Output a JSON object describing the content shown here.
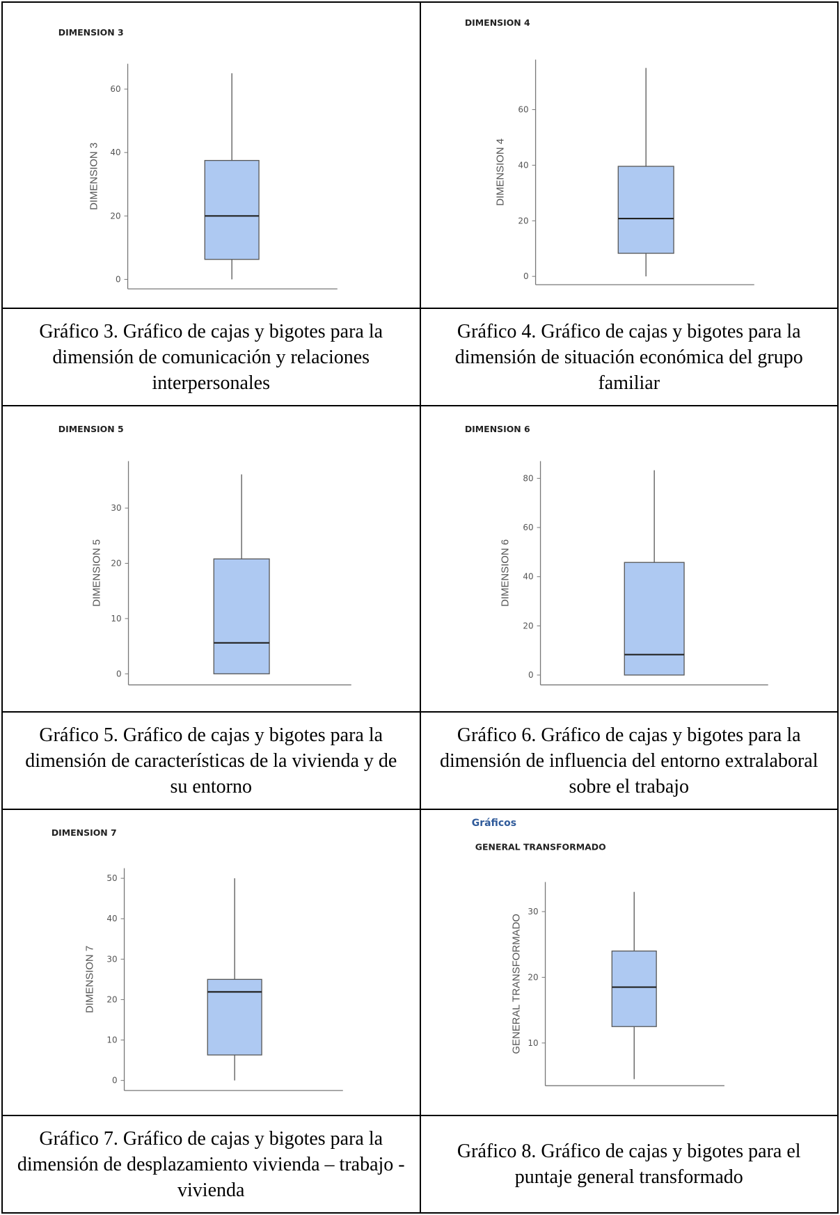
{
  "chart_data": [
    {
      "type": "boxplot",
      "title": "DIMENSION 3",
      "ylabel": "DIMENSION 3",
      "yticks": [
        0,
        20,
        40,
        60
      ],
      "ylim": [
        -3,
        68
      ],
      "box": {
        "min": 0,
        "q1": 6.3,
        "median": 20,
        "q3": 37.5,
        "max": 65
      },
      "caption": "Gráfico 3. Gráfico de cajas y bigotes para la dimensión de comunicación y relaciones interpersonales"
    },
    {
      "type": "boxplot",
      "title": "DIMENSION 4",
      "ylabel": "DIMENSION 4",
      "yticks": [
        0,
        20,
        40,
        60
      ],
      "ylim": [
        -3,
        78
      ],
      "box": {
        "min": 0,
        "q1": 8.3,
        "median": 20.8,
        "q3": 39.6,
        "max": 75
      },
      "caption": "Gráfico 4. Gráfico de cajas y bigotes para la dimensión de situación económica del grupo familiar"
    },
    {
      "type": "boxplot",
      "title": "DIMENSION 5",
      "ylabel": "DIMENSION 5",
      "yticks": [
        0,
        10,
        20,
        30
      ],
      "ylim": [
        -2,
        38.5
      ],
      "box": {
        "min": 0,
        "q1": 0,
        "median": 5.6,
        "q3": 20.8,
        "max": 36.1
      },
      "caption": "Gráfico 5. Gráfico de cajas y bigotes para la dimensión de características de la vivienda y de su entorno"
    },
    {
      "type": "boxplot",
      "title": "DIMENSION 6",
      "ylabel": "DIMENSION 6",
      "yticks": [
        0,
        20,
        40,
        60,
        80
      ],
      "ylim": [
        -4,
        87
      ],
      "box": {
        "min": 0,
        "q1": 0,
        "median": 8.3,
        "q3": 45.8,
        "max": 83.3
      },
      "caption": "Gráfico 6. Gráfico de cajas y bigotes para la dimensión de influencia del entorno extralaboral sobre el trabajo"
    },
    {
      "type": "boxplot",
      "title": "DIMENSION 7",
      "ylabel": "DIMENSION 7",
      "yticks": [
        0,
        10,
        20,
        30,
        40,
        50
      ],
      "ylim": [
        -2.5,
        52.5
      ],
      "box": {
        "min": 0,
        "q1": 6.3,
        "median": 21.9,
        "q3": 25,
        "max": 50
      },
      "caption": "Gráfico 7. Gráfico de cajas y bigotes para la dimensión de desplazamiento vivienda – trabajo - vivienda"
    },
    {
      "type": "boxplot",
      "section": "Gráficos",
      "title": "GENERAL TRANSFORMADO",
      "ylabel": "GENERAL TRANSFORMADO",
      "yticks": [
        10,
        20,
        30
      ],
      "ylim": [
        3.5,
        34.5
      ],
      "box": {
        "min": 4.5,
        "q1": 12.5,
        "median": 18.5,
        "q3": 24,
        "max": 33
      },
      "caption": "Gráfico 8. Gráfico de cajas y bigotes para el puntaje general transformado"
    }
  ],
  "colors": {
    "box_fill": "#aec9f2",
    "box_stroke": "#555555",
    "median": "#222222",
    "axis": "#777777",
    "section_link": "#2f5a9a"
  }
}
